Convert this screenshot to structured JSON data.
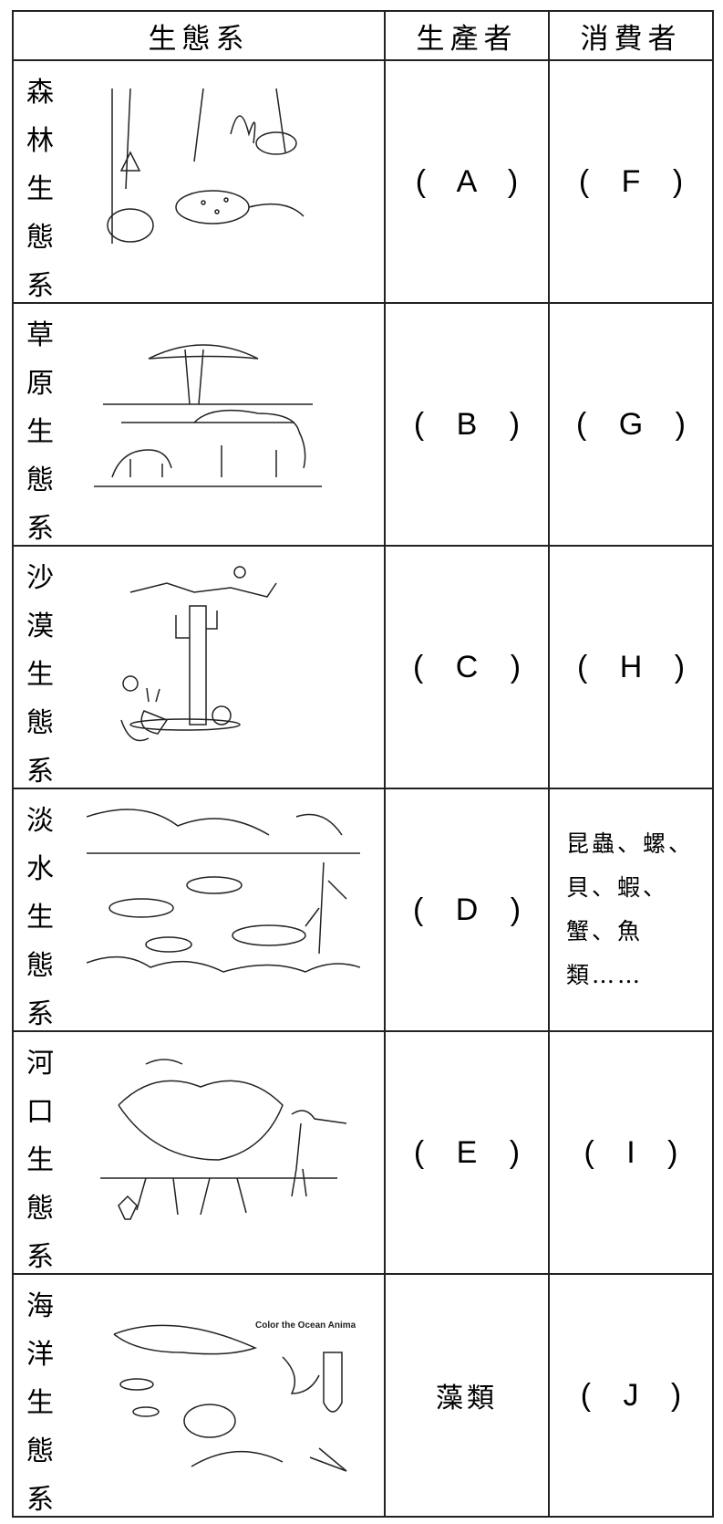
{
  "table": {
    "header": [
      "生態系",
      "生產者",
      "消費者"
    ],
    "rows": [
      [
        "森林生態系",
        "( A )",
        "( F )"
      ],
      [
        "草原生態系",
        "( B )",
        "( G )"
      ],
      [
        "沙漠生態系",
        "( C )",
        "( H )"
      ],
      [
        "淡水生態系",
        "( D )",
        "昆蟲、螺、貝、蝦、蟹、魚類……"
      ],
      [
        "河口生態系",
        "( E )",
        "( I )"
      ],
      [
        "海洋生態系",
        "藻類",
        "( J )"
      ]
    ],
    "ocean_image_caption": "Color the Ocean Animals"
  }
}
